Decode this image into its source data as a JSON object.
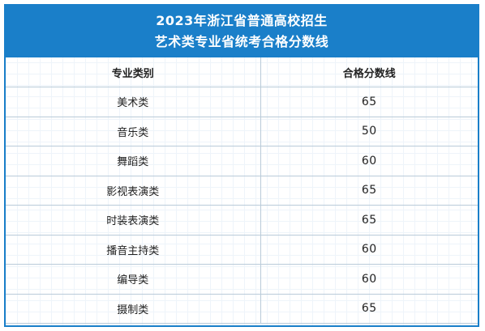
{
  "header": {
    "line1": "2023年浙江省普通高校招生",
    "line2": "艺术类专业省统考合格分数线"
  },
  "table": {
    "columns": [
      "专业类别",
      "合格分数线"
    ],
    "rows": [
      {
        "category": "美术类",
        "score": "65"
      },
      {
        "category": "音乐类",
        "score": "50"
      },
      {
        "category": "舞蹈类",
        "score": "60"
      },
      {
        "category": "影视表演类",
        "score": "65"
      },
      {
        "category": "时装表演类",
        "score": "65"
      },
      {
        "category": "播音主持类",
        "score": "60"
      },
      {
        "category": "编导类",
        "score": "60"
      },
      {
        "category": "摄制类",
        "score": "65"
      }
    ]
  },
  "colors": {
    "header_bg": "#1a7fc9",
    "border": "#b9cbd9"
  }
}
